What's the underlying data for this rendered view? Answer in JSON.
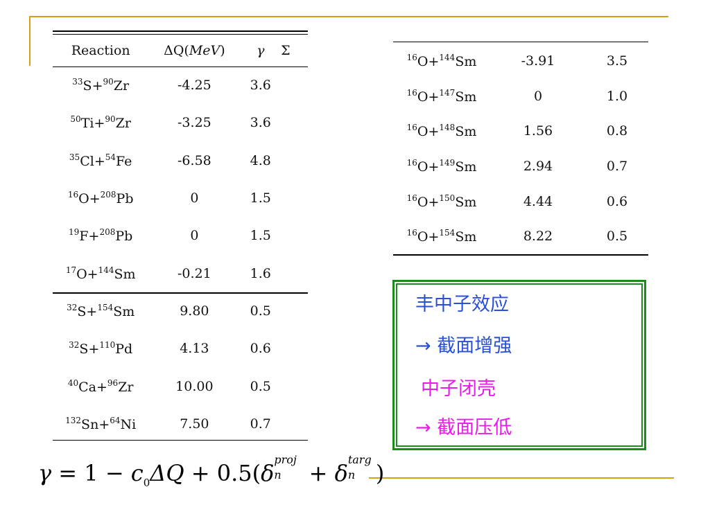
{
  "colors": {
    "accent_rule": "#d4a017",
    "box_border": "#1c8a1c",
    "note_blue": "#2a4fd8",
    "note_magenta": "#e81ce8"
  },
  "left_table": {
    "headers": [
      "Reaction",
      "ΔQ(MeV)",
      "γ",
      "Σ"
    ],
    "rows": [
      {
        "proj_mass": "33",
        "proj": "S",
        "targ_mass": "90",
        "targ": "Zr",
        "dq": "-4.25",
        "gamma": "3.6"
      },
      {
        "proj_mass": "50",
        "proj": "Ti",
        "targ_mass": "90",
        "targ": "Zr",
        "dq": "-3.25",
        "gamma": "3.6"
      },
      {
        "proj_mass": "35",
        "proj": "Cl",
        "targ_mass": "54",
        "targ": "Fe",
        "dq": "-6.58",
        "gamma": "4.8"
      },
      {
        "proj_mass": "16",
        "proj": "O",
        "targ_mass": "208",
        "targ": "Pb",
        "dq": "0",
        "gamma": "1.5"
      },
      {
        "proj_mass": "19",
        "proj": "F",
        "targ_mass": "208",
        "targ": "Pb",
        "dq": "0",
        "gamma": "1.5"
      },
      {
        "proj_mass": "17",
        "proj": "O",
        "targ_mass": "144",
        "targ": "Sm",
        "dq": "-0.21",
        "gamma": "1.6"
      },
      {
        "proj_mass": "32",
        "proj": "S",
        "targ_mass": "154",
        "targ": "Sm",
        "dq": "9.80",
        "gamma": "0.5"
      },
      {
        "proj_mass": "32",
        "proj": "S",
        "targ_mass": "110",
        "targ": "Pd",
        "dq": "4.13",
        "gamma": "0.6"
      },
      {
        "proj_mass": "40",
        "proj": "Ca",
        "targ_mass": "96",
        "targ": "Zr",
        "dq": "10.00",
        "gamma": "0.5"
      },
      {
        "proj_mass": "132",
        "proj": "Sn",
        "targ_mass": "64",
        "targ": "Ni",
        "dq": "7.50",
        "gamma": "0.7"
      }
    ]
  },
  "right_table": {
    "rows": [
      {
        "proj_mass": "16",
        "proj": "O",
        "targ_mass": "144",
        "targ": "Sm",
        "dq": "-3.91",
        "gamma": "3.5"
      },
      {
        "proj_mass": "16",
        "proj": "O",
        "targ_mass": "147",
        "targ": "Sm",
        "dq": "0",
        "gamma": "1.0"
      },
      {
        "proj_mass": "16",
        "proj": "O",
        "targ_mass": "148",
        "targ": "Sm",
        "dq": "1.56",
        "gamma": "0.8"
      },
      {
        "proj_mass": "16",
        "proj": "O",
        "targ_mass": "149",
        "targ": "Sm",
        "dq": "2.94",
        "gamma": "0.7"
      },
      {
        "proj_mass": "16",
        "proj": "O",
        "targ_mass": "150",
        "targ": "Sm",
        "dq": "4.44",
        "gamma": "0.6"
      },
      {
        "proj_mass": "16",
        "proj": "O",
        "targ_mass": "154",
        "targ": "Sm",
        "dq": "8.22",
        "gamma": "0.5"
      }
    ]
  },
  "note_box": {
    "line1": "丰中子效应",
    "line2": "→ 截面增强",
    "line3": "中子闭壳",
    "line4": "→ 截面压低"
  },
  "formula": {
    "gamma": "γ",
    "eq": " = 1 − ",
    "c": "c",
    "c_sub": "0",
    "dq": "ΔQ",
    "mid": " + 0.5(",
    "delta": "δ",
    "proj_sup": "proj",
    "n_sub": "n",
    "plus": " + ",
    "targ_sup": "targ",
    "close": ")"
  }
}
